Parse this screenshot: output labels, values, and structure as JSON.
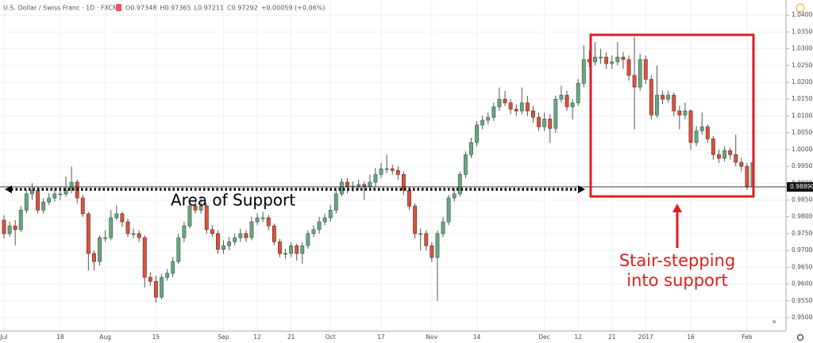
{
  "chart_data": {
    "type": "candlestick",
    "title": "U.S. Dollar / Swiss Franc · 1D · FXCM",
    "header_values": [
      "O0.97348",
      "H0.97365",
      "L0.97211",
      "C0.97292",
      "+0.00059 (+0.06%)"
    ],
    "up_color": "#6ba583",
    "down_color": "#d75442",
    "ylim": [
      0.946,
      1.0445
    ],
    "yticks": [
      {
        "value": 0.95,
        "label": "0.95000"
      },
      {
        "value": 0.955,
        "label": "0.95500"
      },
      {
        "value": 0.96,
        "label": "0.96000"
      },
      {
        "value": 0.965,
        "label": "0.96500"
      },
      {
        "value": 0.97,
        "label": "0.97000"
      },
      {
        "value": 0.975,
        "label": "0.97500"
      },
      {
        "value": 0.98,
        "label": "0.98000"
      },
      {
        "value": 0.985,
        "label": "0.98500"
      },
      {
        "value": 0.99,
        "label": "0.99000"
      },
      {
        "value": 0.995,
        "label": "0.99500"
      },
      {
        "value": 1.0,
        "label": "1.00000"
      },
      {
        "value": 1.005,
        "label": "1.00500"
      },
      {
        "value": 1.01,
        "label": "1.01000"
      },
      {
        "value": 1.015,
        "label": "1.01500"
      },
      {
        "value": 1.02,
        "label": "1.02000"
      },
      {
        "value": 1.025,
        "label": "1.02500"
      },
      {
        "value": 1.03,
        "label": "1.03000"
      },
      {
        "value": 1.035,
        "label": "1.03500"
      },
      {
        "value": 1.04,
        "label": "1.04000"
      }
    ],
    "grid": true,
    "price_line": {
      "value": 0.9889,
      "label": "0.98890"
    },
    "annotations": {
      "support": "Area of Support",
      "callout": [
        "Stair-stepping",
        "into support"
      ]
    },
    "categories": [
      "Jul",
      null,
      null,
      null,
      null,
      null,
      null,
      null,
      null,
      null,
      "18",
      null,
      null,
      null,
      null,
      null,
      null,
      null,
      "Aug",
      null,
      null,
      null,
      null,
      null,
      null,
      null,
      null,
      "15",
      null,
      null,
      null,
      null,
      null,
      null,
      null,
      null,
      null,
      null,
      null,
      "Sep",
      null,
      null,
      null,
      null,
      null,
      "12",
      null,
      null,
      null,
      null,
      null,
      "21",
      null,
      null,
      null,
      null,
      null,
      null,
      "Oct",
      null,
      null,
      null,
      null,
      null,
      null,
      null,
      null,
      "17",
      null,
      null,
      null,
      null,
      null,
      null,
      null,
      null,
      "Nov",
      null,
      null,
      null,
      null,
      null,
      null,
      null,
      "14",
      null,
      null,
      null,
      null,
      null,
      null,
      null,
      null,
      null,
      null,
      null,
      "Dec",
      null,
      null,
      null,
      null,
      null,
      "12",
      null,
      null,
      null,
      null,
      null,
      "21",
      null,
      null,
      null,
      null,
      null,
      "2017",
      null,
      null,
      null,
      null,
      null,
      null,
      null,
      "16",
      null,
      null,
      null,
      null,
      null,
      null,
      null,
      null,
      null,
      "Feb",
      null
    ],
    "ohlc": [
      [
        0.979,
        0.9805,
        0.9735,
        0.975
      ],
      [
        0.975,
        0.9785,
        0.974,
        0.9773
      ],
      [
        0.9773,
        0.979,
        0.9715,
        0.9762
      ],
      [
        0.9762,
        0.9832,
        0.9755,
        0.982
      ],
      [
        0.982,
        0.988,
        0.981,
        0.9868
      ],
      [
        0.9868,
        0.99,
        0.985,
        0.9879
      ],
      [
        0.9879,
        0.989,
        0.981,
        0.982
      ],
      [
        0.982,
        0.9855,
        0.981,
        0.9844
      ],
      [
        0.9844,
        0.987,
        0.9835,
        0.9856
      ],
      [
        0.9856,
        0.9885,
        0.9845,
        0.9868
      ],
      [
        0.9868,
        0.989,
        0.985,
        0.9868
      ],
      [
        0.9868,
        0.992,
        0.986,
        0.9879
      ],
      [
        0.9879,
        0.995,
        0.987,
        0.9903
      ],
      [
        0.9903,
        0.991,
        0.984,
        0.9856
      ],
      [
        0.9856,
        0.9865,
        0.98,
        0.9809
      ],
      [
        0.9809,
        0.9815,
        0.964,
        0.9691
      ],
      [
        0.9691,
        0.97,
        0.964,
        0.9667
      ],
      [
        0.9667,
        0.9745,
        0.9655,
        0.9738
      ],
      [
        0.9738,
        0.976,
        0.9725,
        0.9738
      ],
      [
        0.9738,
        0.982,
        0.973,
        0.9797
      ],
      [
        0.9797,
        0.9835,
        0.979,
        0.9809
      ],
      [
        0.9809,
        0.9815,
        0.977,
        0.9785
      ],
      [
        0.9785,
        0.9795,
        0.974,
        0.975
      ],
      [
        0.975,
        0.9765,
        0.9735,
        0.975
      ],
      [
        0.975,
        0.976,
        0.9725,
        0.9738
      ],
      [
        0.9738,
        0.9745,
        0.959,
        0.962
      ],
      [
        0.962,
        0.9635,
        0.9595,
        0.9608
      ],
      [
        0.9608,
        0.9625,
        0.9545,
        0.9561
      ],
      [
        0.9561,
        0.963,
        0.9555,
        0.962
      ],
      [
        0.962,
        0.9645,
        0.961,
        0.9632
      ],
      [
        0.9632,
        0.968,
        0.962,
        0.9667
      ],
      [
        0.9667,
        0.975,
        0.966,
        0.9738
      ],
      [
        0.9738,
        0.9785,
        0.9725,
        0.9773
      ],
      [
        0.9773,
        0.9845,
        0.9765,
        0.9832
      ],
      [
        0.9832,
        0.985,
        0.981,
        0.982
      ],
      [
        0.982,
        0.986,
        0.981,
        0.9832
      ],
      [
        0.9832,
        0.984,
        0.975,
        0.9762
      ],
      [
        0.9762,
        0.9775,
        0.974,
        0.975
      ],
      [
        0.975,
        0.976,
        0.969,
        0.9703
      ],
      [
        0.9703,
        0.973,
        0.969,
        0.9714
      ],
      [
        0.9714,
        0.974,
        0.97,
        0.9726
      ],
      [
        0.9726,
        0.975,
        0.9715,
        0.9738
      ],
      [
        0.9738,
        0.9765,
        0.9725,
        0.975
      ],
      [
        0.975,
        0.976,
        0.9725,
        0.9738
      ],
      [
        0.9738,
        0.98,
        0.973,
        0.9785
      ],
      [
        0.9785,
        0.981,
        0.9775,
        0.9797
      ],
      [
        0.9797,
        0.9815,
        0.9785,
        0.9797
      ],
      [
        0.9797,
        0.9805,
        0.976,
        0.9773
      ],
      [
        0.9773,
        0.978,
        0.9715,
        0.9726
      ],
      [
        0.9726,
        0.9735,
        0.968,
        0.9691
      ],
      [
        0.9691,
        0.9705,
        0.9675,
        0.9691
      ],
      [
        0.9691,
        0.9725,
        0.968,
        0.9714
      ],
      [
        0.9714,
        0.972,
        0.967,
        0.9691
      ],
      [
        0.9691,
        0.9725,
        0.966,
        0.9714
      ],
      [
        0.9714,
        0.976,
        0.9705,
        0.975
      ],
      [
        0.975,
        0.9775,
        0.974,
        0.9762
      ],
      [
        0.9762,
        0.98,
        0.975,
        0.9785
      ],
      [
        0.9785,
        0.981,
        0.9775,
        0.9797
      ],
      [
        0.9797,
        0.9835,
        0.9785,
        0.982
      ],
      [
        0.982,
        0.988,
        0.981,
        0.9868
      ],
      [
        0.9868,
        0.9915,
        0.986,
        0.9903
      ],
      [
        0.9903,
        0.9915,
        0.987,
        0.9891
      ],
      [
        0.9891,
        0.9905,
        0.9875,
        0.9891
      ],
      [
        0.9891,
        0.991,
        0.988,
        0.9896
      ],
      [
        0.9896,
        0.9905,
        0.985,
        0.9891
      ],
      [
        0.9891,
        0.9925,
        0.988,
        0.9903
      ],
      [
        0.9903,
        0.9945,
        0.989,
        0.9926
      ],
      [
        0.9926,
        0.996,
        0.9915,
        0.9943
      ],
      [
        0.9943,
        0.9985,
        0.993,
        0.9943
      ],
      [
        0.9943,
        0.9955,
        0.9925,
        0.9938
      ],
      [
        0.9938,
        0.995,
        0.991,
        0.9926
      ],
      [
        0.9926,
        0.9935,
        0.9865,
        0.9879
      ],
      [
        0.9879,
        0.989,
        0.982,
        0.9832
      ],
      [
        0.9832,
        0.984,
        0.9735,
        0.975
      ],
      [
        0.975,
        0.9765,
        0.97,
        0.975
      ],
      [
        0.975,
        0.976,
        0.97,
        0.9714
      ],
      [
        0.9714,
        0.9725,
        0.9665,
        0.9679
      ],
      [
        0.9679,
        0.976,
        0.955,
        0.975
      ],
      [
        0.975,
        0.98,
        0.974,
        0.9785
      ],
      [
        0.9785,
        0.9865,
        0.9775,
        0.9856
      ],
      [
        0.9856,
        0.9885,
        0.9845,
        0.9868
      ],
      [
        0.9868,
        0.9935,
        0.986,
        0.9926
      ],
      [
        0.9926,
        0.9995,
        0.9915,
        0.9985
      ],
      [
        0.9985,
        1.0035,
        0.9975,
        1.0021
      ],
      [
        1.0021,
        1.0085,
        1.001,
        1.0073
      ],
      [
        1.0073,
        1.01,
        1.006,
        1.0087
      ],
      [
        1.0087,
        1.011,
        1.0075,
        1.0096
      ],
      [
        1.0096,
        1.014,
        1.0085,
        1.0127
      ],
      [
        1.0127,
        1.0185,
        1.0115,
        1.015
      ],
      [
        1.015,
        1.0175,
        1.013,
        1.0139
      ],
      [
        1.0139,
        1.015,
        1.0105,
        1.012
      ],
      [
        1.012,
        1.0135,
        1.01,
        1.0115
      ],
      [
        1.0115,
        1.0185,
        1.0105,
        1.0139
      ],
      [
        1.0139,
        1.016,
        1.01,
        1.0115
      ],
      [
        1.0115,
        1.013,
        1.008,
        1.0096
      ],
      [
        1.0096,
        1.011,
        1.0055,
        1.0068
      ],
      [
        1.0068,
        1.011,
        1.0055,
        1.0091
      ],
      [
        1.0091,
        1.0105,
        1.002,
        1.0063
      ],
      [
        1.0063,
        1.016,
        1.005,
        1.015
      ],
      [
        1.015,
        1.019,
        1.014,
        1.0162
      ],
      [
        1.0162,
        1.0175,
        1.0115,
        1.0127
      ],
      [
        1.0127,
        1.015,
        1.009,
        1.0139
      ],
      [
        1.0139,
        1.021,
        1.013,
        1.0197
      ],
      [
        1.0197,
        1.031,
        1.0185,
        1.0268
      ],
      [
        1.0268,
        1.0295,
        1.0245,
        1.0261
      ],
      [
        1.0261,
        1.032,
        1.025,
        1.0275
      ],
      [
        1.0275,
        1.03,
        1.0255,
        1.0275
      ],
      [
        1.0275,
        1.029,
        1.024,
        1.0256
      ],
      [
        1.0256,
        1.028,
        1.024,
        1.0261
      ],
      [
        1.0261,
        1.032,
        1.025,
        1.0275
      ],
      [
        1.0275,
        1.029,
        1.024,
        1.0268
      ],
      [
        1.0268,
        1.028,
        1.0205,
        1.0221
      ],
      [
        1.0221,
        1.0335,
        1.006,
        1.0186
      ],
      [
        1.0186,
        1.0285,
        1.0175,
        1.0268
      ],
      [
        1.0268,
        1.028,
        1.0195,
        1.0209
      ],
      [
        1.0209,
        1.022,
        1.009,
        1.0103
      ],
      [
        1.0103,
        1.025,
        1.0095,
        1.0162
      ],
      [
        1.0162,
        1.0175,
        1.0135,
        1.015
      ],
      [
        1.015,
        1.0175,
        1.014,
        1.0162
      ],
      [
        1.0162,
        1.017,
        1.01,
        1.0115
      ],
      [
        1.0115,
        1.013,
        1.006,
        1.0103
      ],
      [
        1.0103,
        1.014,
        1.009,
        1.0115
      ],
      [
        1.0115,
        1.012,
        1.0,
        1.0021
      ],
      [
        1.0021,
        1.007,
        1.001,
        1.0056
      ],
      [
        1.0056,
        1.011,
        1.0045,
        1.0068
      ],
      [
        1.0068,
        1.0075,
        1.002,
        1.0032
      ],
      [
        1.0032,
        1.004,
        0.997,
        0.9985
      ],
      [
        0.9985,
        1.0,
        0.996,
        0.9974
      ],
      [
        0.9974,
        1.001,
        0.9965,
        0.9997
      ],
      [
        0.9997,
        1.0005,
        0.997,
        0.9985
      ],
      [
        0.9985,
        1.0045,
        0.995,
        0.9962
      ],
      [
        0.9962,
        0.9975,
        0.9935,
        0.995
      ],
      [
        0.995,
        0.996,
        0.988,
        0.9891
      ],
      [
        0.9891,
        0.9975,
        0.988,
        0.9962
      ]
    ]
  }
}
